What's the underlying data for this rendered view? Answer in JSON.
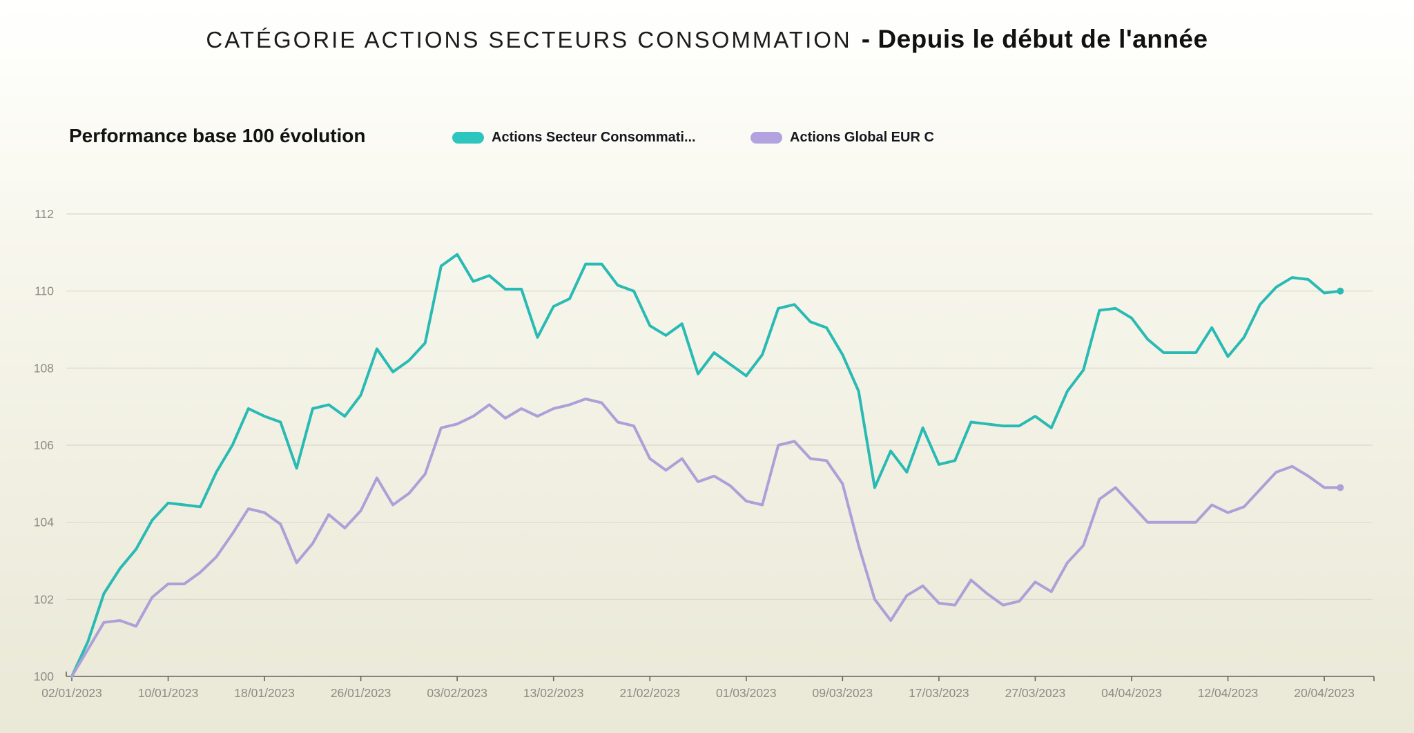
{
  "header": {
    "category_title": "CATÉGORIE ACTIONS SECTEURS CONSOMMATION",
    "period_title": "- Depuis le début de l'année"
  },
  "legend": {
    "heading": "Performance base 100 évolution",
    "items": [
      {
        "id": "actions-secteur-consommation",
        "label": "Actions Secteur Consommati...",
        "color": "#2fc5bf"
      },
      {
        "id": "actions-global-eur-c",
        "label": "Actions Global EUR C",
        "color": "#b2a3e0"
      }
    ]
  },
  "chart_data": {
    "type": "line",
    "title": "Performance base 100 évolution",
    "xlabel": "",
    "ylabel": "",
    "ylim": [
      100,
      112
    ],
    "yticks": [
      100,
      102,
      104,
      106,
      108,
      110,
      112
    ],
    "grid": "horizontal",
    "legend_position": "top",
    "axis_color": "#63635c",
    "grid_color": "#d9d8cd",
    "tick_label_color": "#8b8b83",
    "x": [
      "02/01/2023",
      "03/01/2023",
      "04/01/2023",
      "05/01/2023",
      "06/01/2023",
      "09/01/2023",
      "10/01/2023",
      "11/01/2023",
      "12/01/2023",
      "13/01/2023",
      "16/01/2023",
      "17/01/2023",
      "18/01/2023",
      "19/01/2023",
      "20/01/2023",
      "23/01/2023",
      "24/01/2023",
      "25/01/2023",
      "26/01/2023",
      "27/01/2023",
      "30/01/2023",
      "31/01/2023",
      "01/02/2023",
      "02/02/2023",
      "03/02/2023",
      "06/02/2023",
      "07/02/2023",
      "08/02/2023",
      "09/02/2023",
      "10/02/2023",
      "13/02/2023",
      "14/02/2023",
      "15/02/2023",
      "16/02/2023",
      "17/02/2023",
      "20/02/2023",
      "21/02/2023",
      "22/02/2023",
      "23/02/2023",
      "24/02/2023",
      "27/02/2023",
      "28/02/2023",
      "01/03/2023",
      "02/03/2023",
      "03/03/2023",
      "06/03/2023",
      "07/03/2023",
      "08/03/2023",
      "09/03/2023",
      "10/03/2023",
      "13/03/2023",
      "14/03/2023",
      "15/03/2023",
      "16/03/2023",
      "17/03/2023",
      "20/03/2023",
      "21/03/2023",
      "22/03/2023",
      "23/03/2023",
      "24/03/2023",
      "27/03/2023",
      "28/03/2023",
      "29/03/2023",
      "30/03/2023",
      "31/03/2023",
      "03/04/2023",
      "04/04/2023",
      "05/04/2023",
      "06/04/2023",
      "07/04/2023",
      "10/04/2023",
      "11/04/2023",
      "12/04/2023",
      "13/04/2023",
      "14/04/2023",
      "17/04/2023",
      "18/04/2023",
      "19/04/2023",
      "20/04/2023",
      "21/04/2023"
    ],
    "x_tick_indices": [
      0,
      6,
      12,
      18,
      24,
      30,
      36,
      42,
      48,
      54,
      60,
      66,
      72,
      78
    ],
    "x_tick_labels": [
      "02/01/2023",
      "10/01/2023",
      "18/01/2023",
      "26/01/2023",
      "03/02/2023",
      "13/02/2023",
      "21/02/2023",
      "01/03/2023",
      "09/03/2023",
      "17/03/2023",
      "27/03/2023",
      "04/04/2023",
      "12/04/2023",
      "20/04/2023"
    ],
    "series": [
      {
        "name": "Actions Secteur Consommation",
        "id": "actions-secteur-consommation",
        "color": "#29bab4",
        "values": [
          100.0,
          100.9,
          102.15,
          102.8,
          103.3,
          104.05,
          104.5,
          104.45,
          104.4,
          105.3,
          106.0,
          106.95,
          106.75,
          106.6,
          105.4,
          106.95,
          107.05,
          106.75,
          107.3,
          108.5,
          107.9,
          108.2,
          108.65,
          110.65,
          110.95,
          110.25,
          110.4,
          110.05,
          110.05,
          108.8,
          109.6,
          109.8,
          110.7,
          110.7,
          110.15,
          110.0,
          109.1,
          108.85,
          109.15,
          107.85,
          108.4,
          108.1,
          107.8,
          108.35,
          109.55,
          109.65,
          109.2,
          109.05,
          108.35,
          107.4,
          104.9,
          105.85,
          105.3,
          106.45,
          105.5,
          105.6,
          106.6,
          106.55,
          106.5,
          106.5,
          106.75,
          106.45,
          107.4,
          107.95,
          109.5,
          109.55,
          109.3,
          108.75,
          108.4,
          108.4,
          108.4,
          109.05,
          108.3,
          108.8,
          109.65,
          110.1,
          110.35,
          110.3,
          109.95,
          110.0
        ]
      },
      {
        "name": "Actions Global EUR C",
        "id": "actions-global-eur-c",
        "color": "#aca0d8",
        "values": [
          100.0,
          100.7,
          101.4,
          101.45,
          101.3,
          102.05,
          102.4,
          102.4,
          102.7,
          103.1,
          103.7,
          104.35,
          104.25,
          103.95,
          102.95,
          103.45,
          104.2,
          103.85,
          104.3,
          105.15,
          104.45,
          104.75,
          105.25,
          106.45,
          106.55,
          106.75,
          107.05,
          106.7,
          106.95,
          106.75,
          106.95,
          107.05,
          107.2,
          107.1,
          106.6,
          106.5,
          105.65,
          105.35,
          105.65,
          105.05,
          105.2,
          104.95,
          104.55,
          104.45,
          106.0,
          106.1,
          105.65,
          105.6,
          105.0,
          103.4,
          102.0,
          101.45,
          102.1,
          102.35,
          101.9,
          101.85,
          102.5,
          102.15,
          101.85,
          101.95,
          102.45,
          102.2,
          102.95,
          103.4,
          104.6,
          104.9,
          104.45,
          104.0,
          104.0,
          104.0,
          104.0,
          104.45,
          104.25,
          104.4,
          104.85,
          105.3,
          105.45,
          105.2,
          104.9,
          104.9
        ]
      }
    ]
  }
}
